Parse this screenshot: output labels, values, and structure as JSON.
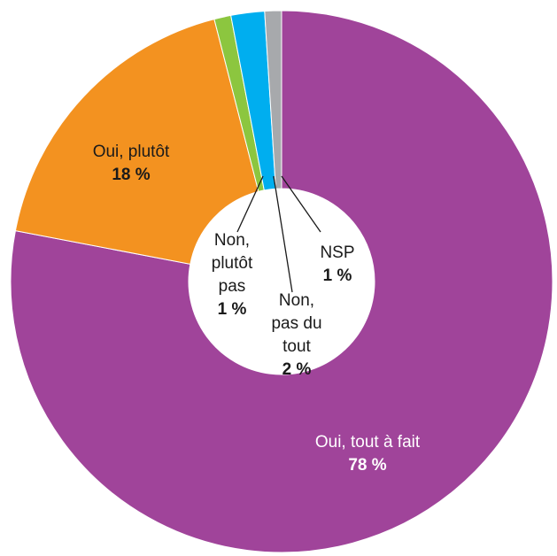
{
  "chart_data": {
    "type": "donut",
    "categories": [
      "Oui, tout à fait",
      "Oui, plutôt",
      "Non, plutôt pas",
      "Non, pas du tout",
      "NSP"
    ],
    "values": [
      78,
      18,
      1,
      2,
      1
    ],
    "value_labels": [
      "78 %",
      "18 %",
      "1 %",
      "2 %",
      "1 %"
    ],
    "colors": [
      "#a0449a",
      "#f39220",
      "#8cc63f",
      "#00aeef",
      "#a7a9ac"
    ]
  }
}
